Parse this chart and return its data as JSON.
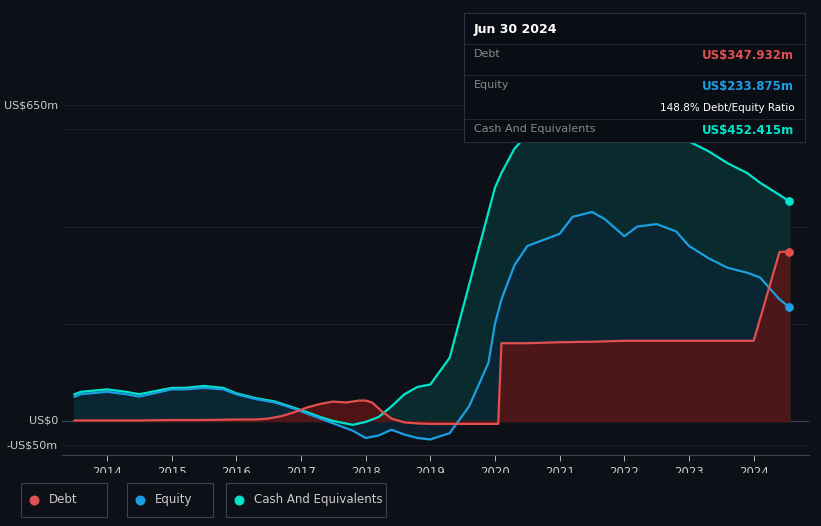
{
  "background_color": "#0d1117",
  "plot_bg_color": "#0d1117",
  "grid_color": "#1e2535",
  "axis_line_color": "#3a4055",
  "text_color": "#cccccc",
  "debt_color": "#e05050",
  "equity_color": "#1a9fe0",
  "cash_color": "#00e5cc",
  "debt_fill_color": "#5a1515",
  "equity_fill_color": "#0a2535",
  "cash_fill_color": "#0a3535",
  "ylim": [
    -70,
    720
  ],
  "xlim": [
    2013.3,
    2024.85
  ],
  "tooltip_bg": "#0a0d14",
  "tooltip_border": "#2a3040",
  "tooltip_title": "Jun 30 2024",
  "tooltip_debt_value": "US$347.932m",
  "tooltip_equity_value": "US$233.875m",
  "tooltip_ratio": "148.8% Debt/Equity Ratio",
  "tooltip_cash_value": "US$452.415m",
  "debt_x": [
    2013.5,
    2013.6,
    2014.0,
    2014.5,
    2015.0,
    2015.5,
    2016.0,
    2016.3,
    2016.5,
    2016.7,
    2016.9,
    2017.1,
    2017.3,
    2017.5,
    2017.7,
    2017.9,
    2018.0,
    2018.1,
    2018.25,
    2018.4,
    2018.6,
    2018.8,
    2019.0,
    2019.2,
    2019.5,
    2019.8,
    2020.0,
    2020.05,
    2020.1,
    2020.2,
    2020.5,
    2021.0,
    2021.5,
    2022.0,
    2022.5,
    2023.0,
    2023.5,
    2023.9,
    2024.0,
    2024.4,
    2024.55
  ],
  "debt_y": [
    1,
    1,
    1,
    1,
    2,
    2,
    3,
    3,
    5,
    10,
    18,
    28,
    35,
    40,
    38,
    42,
    42,
    38,
    20,
    5,
    -3,
    -5,
    -6,
    -6,
    -6,
    -6,
    -6,
    -6,
    160,
    160,
    160,
    162,
    163,
    165,
    165,
    165,
    165,
    165,
    165,
    348,
    348
  ],
  "equity_x": [
    2013.5,
    2013.6,
    2014.0,
    2014.3,
    2014.5,
    2015.0,
    2015.2,
    2015.5,
    2015.8,
    2016.0,
    2016.3,
    2016.6,
    2016.9,
    2017.1,
    2017.3,
    2017.5,
    2017.8,
    2018.0,
    2018.2,
    2018.4,
    2018.6,
    2018.8,
    2019.0,
    2019.3,
    2019.6,
    2019.9,
    2020.0,
    2020.1,
    2020.3,
    2020.5,
    2020.8,
    2021.0,
    2021.2,
    2021.5,
    2021.7,
    2022.0,
    2022.2,
    2022.5,
    2022.8,
    2023.0,
    2023.3,
    2023.6,
    2023.9,
    2024.1,
    2024.4,
    2024.55
  ],
  "equity_y": [
    50,
    55,
    60,
    55,
    50,
    65,
    65,
    68,
    65,
    55,
    45,
    38,
    25,
    15,
    5,
    -5,
    -20,
    -35,
    -30,
    -18,
    -28,
    -35,
    -38,
    -25,
    30,
    120,
    200,
    250,
    320,
    360,
    375,
    385,
    420,
    430,
    415,
    380,
    400,
    405,
    390,
    360,
    335,
    315,
    305,
    295,
    250,
    234
  ],
  "cash_x": [
    2013.5,
    2013.6,
    2014.0,
    2014.3,
    2014.5,
    2015.0,
    2015.2,
    2015.5,
    2015.8,
    2016.0,
    2016.3,
    2016.6,
    2016.9,
    2017.1,
    2017.3,
    2017.5,
    2017.8,
    2018.0,
    2018.2,
    2018.4,
    2018.6,
    2018.8,
    2019.0,
    2019.3,
    2019.6,
    2019.9,
    2020.0,
    2020.1,
    2020.3,
    2020.5,
    2020.8,
    2021.0,
    2021.2,
    2021.5,
    2021.7,
    2022.0,
    2022.2,
    2022.5,
    2022.8,
    2023.0,
    2023.3,
    2023.6,
    2023.9,
    2024.1,
    2024.4,
    2024.55
  ],
  "cash_y": [
    55,
    60,
    65,
    60,
    55,
    68,
    68,
    72,
    68,
    57,
    47,
    40,
    27,
    18,
    8,
    0,
    -8,
    -2,
    8,
    30,
    55,
    70,
    75,
    130,
    280,
    430,
    480,
    510,
    560,
    590,
    600,
    590,
    610,
    635,
    635,
    645,
    645,
    615,
    595,
    575,
    555,
    530,
    510,
    490,
    465,
    452
  ],
  "legend_items": [
    {
      "label": "Debt",
      "color": "#e05050"
    },
    {
      "label": "Equity",
      "color": "#1a9fe0"
    },
    {
      "label": "Cash And Equivalents",
      "color": "#00e5cc"
    }
  ]
}
